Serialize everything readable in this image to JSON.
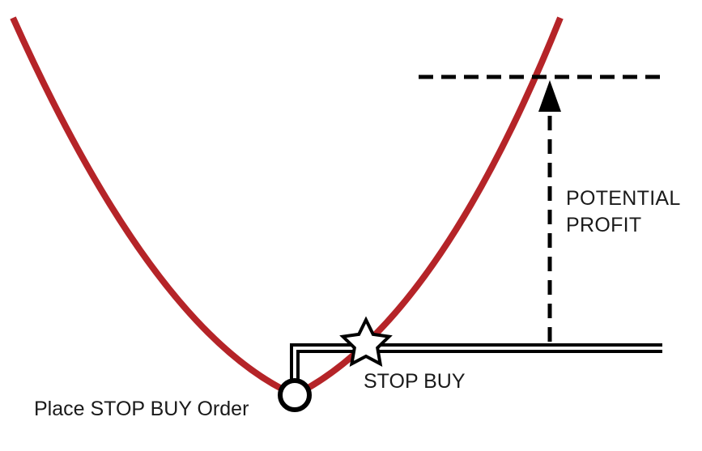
{
  "diagram": {
    "labels": {
      "potential_profit": [
        "POTENTIAL",
        "PROFIT"
      ],
      "stop_buy": "STOP BUY",
      "place_order": "Place STOP BUY Order"
    },
    "colors": {
      "price_curve": "#b52428",
      "lines": "#000000",
      "background": "#ffffff"
    },
    "markers": {
      "entry": "circle",
      "trigger": "star"
    }
  }
}
